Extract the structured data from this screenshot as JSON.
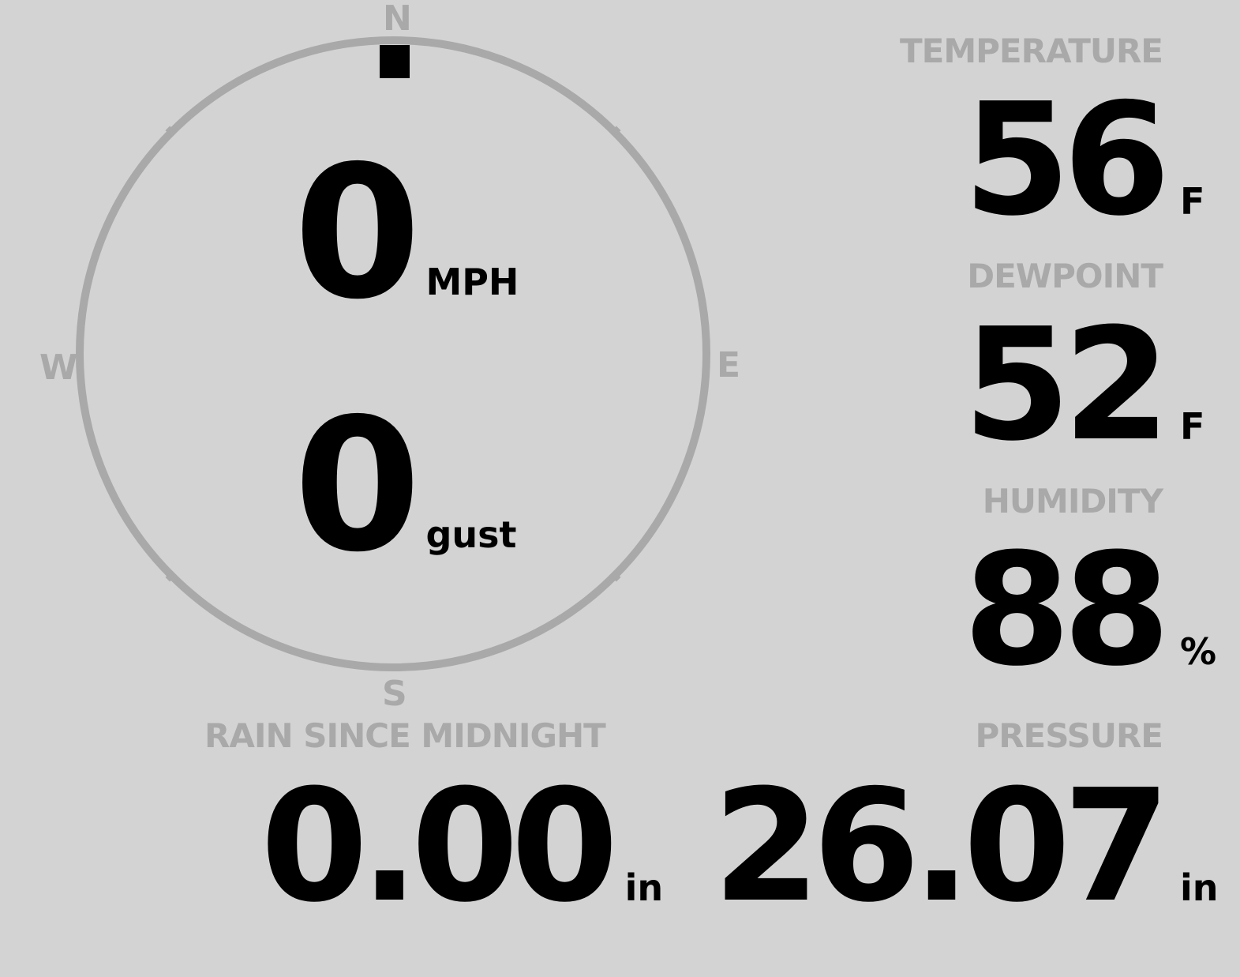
{
  "colors": {
    "background": "#d3d3d3",
    "muted": "#a9a9a9",
    "value": "#000000"
  },
  "compass": {
    "north": "N",
    "south": "S",
    "east": "E",
    "west": "W",
    "wind_direction_deg": 0
  },
  "wind": {
    "speed": "0",
    "speed_unit": "MPH",
    "gust": "0",
    "gust_unit": "gust"
  },
  "temperature": {
    "label": "TEMPERATURE",
    "value": "56",
    "unit": "F"
  },
  "dewpoint": {
    "label": "DEWPOINT",
    "value": "52",
    "unit": "F"
  },
  "humidity": {
    "label": "HUMIDITY",
    "value": "88",
    "unit": "%"
  },
  "rain": {
    "label": "RAIN SINCE MIDNIGHT",
    "value": "0.00",
    "unit": "in"
  },
  "pressure": {
    "label": "PRESSURE",
    "value": "26.07",
    "unit": "in"
  }
}
